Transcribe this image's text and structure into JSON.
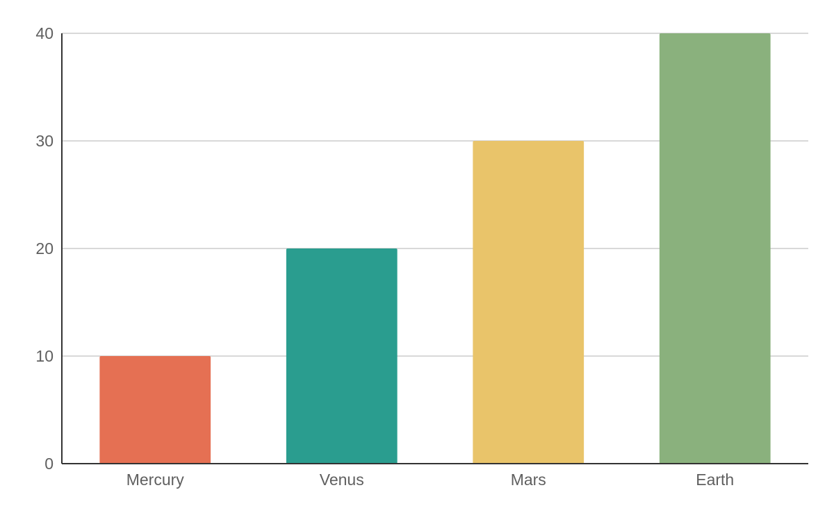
{
  "chart_data": {
    "type": "bar",
    "title": "",
    "xlabel": "",
    "ylabel": "",
    "categories": [
      "Mercury",
      "Venus",
      "Mars",
      "Earth"
    ],
    "values": [
      10,
      20,
      30,
      40
    ],
    "colors": [
      "#e57053",
      "#2a9d8f",
      "#e9c46a",
      "#8ab17d"
    ],
    "ylim": [
      0,
      40
    ],
    "yticks": [
      0,
      10,
      20,
      30,
      40
    ],
    "grid": true,
    "legend": "none"
  }
}
